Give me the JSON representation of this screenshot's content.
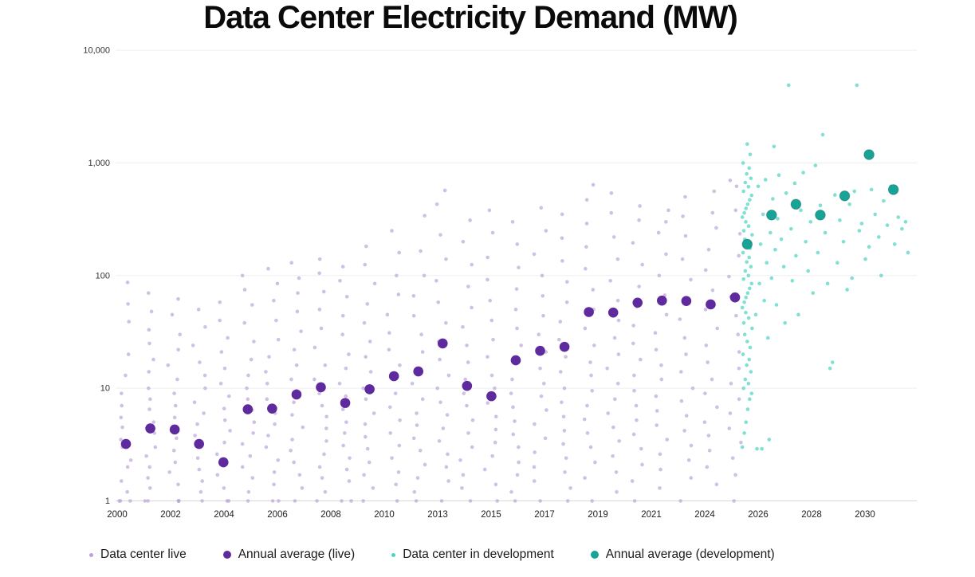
{
  "chart": {
    "title": "Data Center Electricity Demand (MW)"
  },
  "legend": [
    {
      "label": "Data center live",
      "dot": "small",
      "color": "#b9a2d8"
    },
    {
      "label": "Annual average (live)",
      "dot": "big",
      "color": "#5e2a9d"
    },
    {
      "label": "Data center in development",
      "dot": "small",
      "color": "#4fd4c2"
    },
    {
      "label": "Annual average (development)",
      "dot": "big",
      "color": "#17a496"
    }
  ],
  "colors": {
    "live_point": "#b9a2d8",
    "live_avg": "#5e2a9d",
    "dev_point": "#4fd4c2",
    "dev_avg": "#17a496",
    "grid": "#efefef",
    "baseline": "#d8d8d8",
    "tick_text": "#333333"
  },
  "chart_data": {
    "type": "scatter",
    "title": "Data Center Electricity Demand (MW)",
    "x_axis": {
      "tick_labels": [
        "2000",
        "2002",
        "2004",
        "2006",
        "2008",
        "2010",
        "2013",
        "2015",
        "2017",
        "2019",
        "2021",
        "2024",
        "2026",
        "2028",
        "2030"
      ]
    },
    "y_axis": {
      "scale": "log",
      "ticks": [
        {
          "value": 1,
          "label": "1"
        },
        {
          "value": 10,
          "label": "10"
        },
        {
          "value": 100,
          "label": "100"
        },
        {
          "value": 1000,
          "label": "1,000"
        },
        {
          "value": 10000,
          "label": "10,000"
        }
      ],
      "range": [
        1,
        10000
      ]
    },
    "series": [
      {
        "name": "Data center live",
        "style": "small-point",
        "color": "#b9a2d8",
        "years": [
          2000,
          2001,
          2002,
          2003,
          2004,
          2005,
          2006,
          2007,
          2008,
          2009,
          2010,
          2011,
          2012,
          2013,
          2014,
          2015,
          2016,
          2017,
          2018,
          2019,
          2020,
          2021,
          2022,
          2023,
          2024,
          2025
        ],
        "values_by_year": [
          [
            1,
            1,
            1,
            1.2,
            1.5,
            2,
            2.3,
            3,
            3.5,
            4.5,
            5.5,
            7,
            9,
            13,
            20,
            39,
            56,
            87
          ],
          [
            1,
            1,
            1.3,
            1.6,
            2,
            2.5,
            3,
            4,
            5,
            6.5,
            8,
            10,
            14,
            18,
            25,
            33,
            48,
            70
          ],
          [
            1,
            1,
            1,
            1.4,
            1.8,
            2.2,
            2.8,
            3.6,
            4.4,
            5.5,
            7,
            9,
            12,
            16,
            22,
            30,
            45,
            62
          ],
          [
            1,
            1.2,
            1.5,
            1.9,
            2.4,
            3,
            3.8,
            4.8,
            6,
            7.5,
            10,
            13,
            17,
            24,
            35,
            50
          ],
          [
            1,
            1,
            1.3,
            1.7,
            2.1,
            2.6,
            3.3,
            4.2,
            5.2,
            6.6,
            8.5,
            11,
            15,
            21,
            28,
            40,
            58
          ],
          [
            1,
            1.2,
            1.6,
            2,
            2.5,
            3.2,
            4,
            5,
            6.4,
            8,
            10,
            13,
            18,
            26,
            38,
            55,
            75,
            100
          ],
          [
            1,
            1,
            1.4,
            1.8,
            2.3,
            3,
            3.8,
            4.8,
            6,
            8,
            11,
            14,
            19,
            27,
            40,
            60,
            85,
            115
          ],
          [
            1,
            1.3,
            1.7,
            2.2,
            2.8,
            3.5,
            4.5,
            5.8,
            7.5,
            9.5,
            12,
            16,
            22,
            32,
            48,
            70,
            95,
            130
          ],
          [
            1,
            1.2,
            1.6,
            2,
            2.6,
            3.4,
            4.4,
            5.6,
            7,
            9,
            12,
            16,
            23,
            34,
            50,
            72,
            105,
            140
          ],
          [
            1,
            1,
            1.5,
            1.9,
            2.4,
            3.1,
            4,
            5,
            6.5,
            8.5,
            11,
            15,
            20,
            30,
            44,
            65,
            90,
            120
          ],
          [
            1,
            1.3,
            1.7,
            2.2,
            2.9,
            3.7,
            4.8,
            6,
            8,
            10,
            14,
            19,
            26,
            38,
            56,
            85,
            125,
            182
          ],
          [
            1,
            1.4,
            1.8,
            2.4,
            3.1,
            4,
            5.2,
            6.8,
            9,
            12,
            16,
            22,
            31,
            45,
            68,
            100,
            160,
            250
          ],
          [
            1,
            1.2,
            1.6,
            2.1,
            2.8,
            3.6,
            4.7,
            6,
            8,
            11,
            15,
            21,
            30,
            44,
            66,
            100,
            165,
            340
          ],
          [
            1,
            1.5,
            2,
            2.6,
            3.4,
            4.4,
            5.8,
            7.5,
            10,
            13,
            18,
            26,
            38,
            58,
            90,
            140,
            230,
            430,
            570
          ],
          [
            1,
            1.3,
            1.7,
            2.3,
            3,
            4,
            5.2,
            7,
            9,
            12,
            17,
            24,
            35,
            52,
            80,
            125,
            200,
            310
          ],
          [
            1,
            1.4,
            1.9,
            2.5,
            3.3,
            4.3,
            5.6,
            7.4,
            10,
            13,
            19,
            27,
            40,
            60,
            92,
            145,
            240,
            380
          ],
          [
            1,
            1.2,
            1.7,
            2.2,
            3,
            3.9,
            5.1,
            6.8,
            9,
            12,
            17,
            24,
            34,
            50,
            76,
            118,
            190,
            300
          ],
          [
            1,
            1.5,
            2,
            2.7,
            3.6,
            4.8,
            6.4,
            8.5,
            11,
            15,
            21,
            30,
            44,
            66,
            100,
            155,
            250,
            400
          ],
          [
            1,
            1.3,
            1.8,
            2.4,
            3.2,
            4.2,
            5.6,
            7.5,
            10,
            14,
            19,
            27,
            39,
            58,
            88,
            135,
            215,
            350
          ],
          [
            1,
            1.6,
            2.2,
            3,
            4,
            5.3,
            7,
            9.5,
            13,
            17,
            24,
            34,
            50,
            75,
            115,
            180,
            290,
            470,
            640
          ],
          [
            1.2,
            1.8,
            2.5,
            3.4,
            4.5,
            6,
            8,
            11,
            15,
            20,
            28,
            40,
            60,
            90,
            140,
            220,
            360,
            540
          ],
          [
            1,
            1.5,
            2.1,
            2.9,
            3.9,
            5.2,
            7,
            9.5,
            13,
            18,
            25,
            36,
            53,
            80,
            125,
            195,
            310,
            415
          ],
          [
            1.3,
            1.9,
            2.6,
            3.5,
            4.7,
            6.3,
            8.5,
            12,
            16,
            22,
            31,
            45,
            67,
            100,
            155,
            240,
            300,
            380
          ],
          [
            1,
            1.6,
            2.3,
            3.1,
            4.2,
            5.7,
            7.7,
            10,
            14,
            20,
            28,
            41,
            61,
            92,
            140,
            225,
            336,
            500
          ],
          [
            1.4,
            2,
            2.8,
            3.8,
            5,
            6.8,
            9,
            12,
            17,
            24,
            34,
            50,
            74,
            112,
            170,
            265,
            361,
            560
          ],
          [
            1,
            1.7,
            2.4,
            3.3,
            4.4,
            6,
            8,
            11,
            15,
            21,
            30,
            44,
            65,
            98,
            150,
            235,
            380,
            620,
            700
          ]
        ]
      },
      {
        "name": "Annual average (live)",
        "style": "big-point",
        "color": "#5e2a9d",
        "years": [
          2000,
          2001,
          2002,
          2003,
          2004,
          2005,
          2006,
          2007,
          2008,
          2009,
          2010,
          2011,
          2012,
          2013,
          2014,
          2015,
          2016,
          2017,
          2018,
          2019,
          2020,
          2021,
          2022,
          2023,
          2024,
          2025
        ],
        "values": [
          3.2,
          4.4,
          4.3,
          3.2,
          2.2,
          6.5,
          6.6,
          8.8,
          10.2,
          7.4,
          9.8,
          12.8,
          14.1,
          25,
          10.5,
          8.5,
          17.7,
          21.5,
          23.3,
          47.5,
          47,
          57.5,
          60,
          59.5,
          55.5,
          64
        ]
      },
      {
        "name": "Data center in development",
        "style": "small-point",
        "color": "#4fd4c2",
        "points": [
          [
            25.3,
            3
          ],
          [
            25.38,
            4
          ],
          [
            25.45,
            5
          ],
          [
            25.52,
            6.5
          ],
          [
            25.6,
            8
          ],
          [
            25.68,
            9
          ],
          [
            25.35,
            10
          ],
          [
            25.55,
            11
          ],
          [
            25.42,
            12
          ],
          [
            25.65,
            14
          ],
          [
            25.48,
            16
          ],
          [
            25.58,
            18
          ],
          [
            25.33,
            20
          ],
          [
            25.62,
            23
          ],
          [
            25.5,
            26
          ],
          [
            25.4,
            30
          ],
          [
            25.7,
            34
          ],
          [
            25.36,
            38
          ],
          [
            25.56,
            42
          ],
          [
            25.44,
            47
          ],
          [
            25.3,
            52
          ],
          [
            25.38,
            58
          ],
          [
            25.45,
            64
          ],
          [
            25.52,
            70
          ],
          [
            25.6,
            77
          ],
          [
            25.68,
            85
          ],
          [
            25.35,
            93
          ],
          [
            25.55,
            100
          ],
          [
            25.42,
            110
          ],
          [
            25.65,
            120
          ],
          [
            25.48,
            132
          ],
          [
            25.58,
            145
          ],
          [
            25.33,
            160
          ],
          [
            25.62,
            175
          ],
          [
            25.5,
            190
          ],
          [
            25.4,
            210
          ],
          [
            25.7,
            230
          ],
          [
            25.36,
            250
          ],
          [
            25.56,
            275
          ],
          [
            25.44,
            300
          ],
          [
            25.3,
            330
          ],
          [
            25.38,
            360
          ],
          [
            25.45,
            395
          ],
          [
            25.52,
            430
          ],
          [
            25.6,
            470
          ],
          [
            25.68,
            515
          ],
          [
            25.35,
            560
          ],
          [
            25.55,
            615
          ],
          [
            25.42,
            670
          ],
          [
            25.65,
            730
          ],
          [
            25.48,
            800
          ],
          [
            25.58,
            900
          ],
          [
            25.33,
            1000
          ],
          [
            25.62,
            1190
          ],
          [
            25.5,
            1470
          ],
          [
            25.85,
            45
          ],
          [
            25.9,
            2.9
          ],
          [
            25.95,
            620
          ],
          [
            26.0,
            85
          ],
          [
            26.05,
            190
          ],
          [
            26.1,
            2.9
          ],
          [
            26.15,
            350
          ],
          [
            26.2,
            60
          ],
          [
            26.25,
            710
          ],
          [
            26.3,
            130
          ],
          [
            26.35,
            28
          ],
          [
            26.4,
            3.5
          ],
          [
            26.45,
            240
          ],
          [
            26.5,
            95
          ],
          [
            26.55,
            480
          ],
          [
            26.6,
            1400
          ],
          [
            26.65,
            170
          ],
          [
            26.7,
            55
          ],
          [
            26.75,
            320
          ],
          [
            26.8,
            780
          ],
          [
            26.9,
            210
          ],
          [
            27.0,
            120
          ],
          [
            27.05,
            38
          ],
          [
            27.1,
            540
          ],
          [
            27.2,
            4900
          ],
          [
            27.3,
            260
          ],
          [
            27.35,
            90
          ],
          [
            27.45,
            660
          ],
          [
            27.5,
            150
          ],
          [
            27.6,
            45
          ],
          [
            27.7,
            380
          ],
          [
            27.8,
            820
          ],
          [
            27.9,
            200
          ],
          [
            28.0,
            110
          ],
          [
            28.1,
            300
          ],
          [
            28.2,
            70
          ],
          [
            28.3,
            950
          ],
          [
            28.4,
            160
          ],
          [
            28.5,
            420
          ],
          [
            28.6,
            1780
          ],
          [
            28.7,
            240
          ],
          [
            28.8,
            85
          ],
          [
            28.9,
            15
          ],
          [
            29.0,
            17
          ],
          [
            29.1,
            520
          ],
          [
            29.2,
            130
          ],
          [
            29.3,
            310
          ],
          [
            29.45,
            200
          ],
          [
            29.6,
            75
          ],
          [
            29.7,
            430
          ],
          [
            29.8,
            95
          ],
          [
            29.9,
            560
          ],
          [
            30.0,
            4900
          ],
          [
            30.1,
            250
          ],
          [
            30.2,
            290
          ],
          [
            30.35,
            140
          ],
          [
            30.5,
            180
          ],
          [
            30.6,
            580
          ],
          [
            30.75,
            350
          ],
          [
            30.9,
            220
          ],
          [
            31.0,
            100
          ],
          [
            31.1,
            460
          ],
          [
            31.25,
            280
          ],
          [
            31.4,
            620
          ],
          [
            31.55,
            190
          ],
          [
            31.7,
            330
          ],
          [
            31.85,
            260
          ],
          [
            32.0,
            300
          ],
          [
            32.1,
            160
          ]
        ]
      },
      {
        "name": "Annual average (development)",
        "style": "big-point",
        "color": "#17a496",
        "years": [
          2025,
          2026,
          2027,
          2028,
          2029,
          2030,
          2031
        ],
        "x_positions": [
          25.5,
          26.5,
          27.5,
          28.5,
          29.5,
          30.5,
          31.5
        ],
        "values": [
          190,
          345,
          430,
          345,
          510,
          1185,
          580
        ]
      }
    ]
  }
}
